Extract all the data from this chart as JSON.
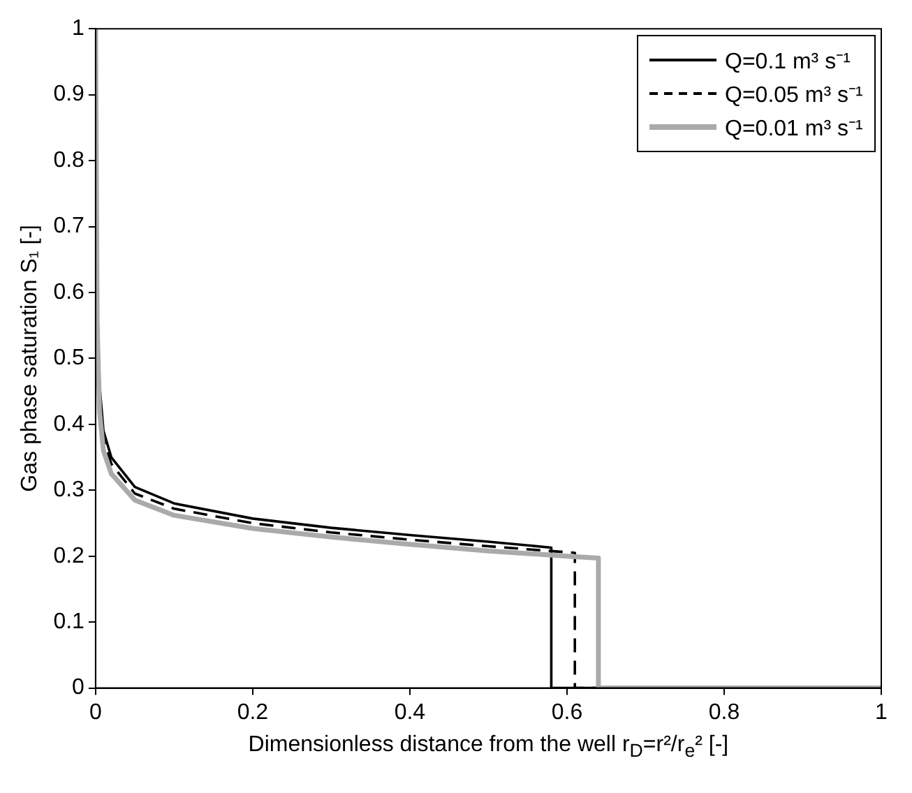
{
  "chart_data": {
    "type": "line",
    "xlabel": "Dimensionless distance from the well r$_{D}$=r²/r$_{e}$² [-]",
    "ylabel": "Gas phase saturation S₁ [-]",
    "xlim": [
      0,
      1
    ],
    "ylim": [
      0,
      1
    ],
    "xticks": [
      0,
      0.2,
      0.4,
      0.6,
      0.8,
      1
    ],
    "yticks": [
      0,
      0.1,
      0.2,
      0.3,
      0.4,
      0.5,
      0.6,
      0.7,
      0.8,
      0.9,
      1
    ],
    "grid": false,
    "legend": "top right",
    "marker": "none",
    "series": [
      {
        "name": "Q=0.1 m³ s⁻¹",
        "color": "#000000",
        "line_style": "solid",
        "x": [
          0,
          0.002,
          0.005,
          0.01,
          0.02,
          0.05,
          0.1,
          0.2,
          0.3,
          0.4,
          0.5,
          0.58,
          0.58,
          1
        ],
        "values": [
          1,
          0.6,
          0.46,
          0.39,
          0.35,
          0.305,
          0.28,
          0.257,
          0.243,
          0.232,
          0.222,
          0.213,
          0,
          0
        ]
      },
      {
        "name": "Q=0.05 m³ s⁻¹",
        "color": "#000000",
        "line_style": "dashed",
        "x": [
          0,
          0.002,
          0.005,
          0.01,
          0.02,
          0.05,
          0.1,
          0.2,
          0.3,
          0.4,
          0.5,
          0.61,
          0.61,
          1
        ],
        "values": [
          1,
          0.58,
          0.44,
          0.38,
          0.34,
          0.295,
          0.272,
          0.25,
          0.236,
          0.225,
          0.215,
          0.205,
          0,
          0
        ]
      },
      {
        "name": "Q=0.01 m³ s⁻¹",
        "color": "#aaaaaa",
        "line_style": "solid",
        "x": [
          0,
          0.002,
          0.005,
          0.01,
          0.02,
          0.05,
          0.1,
          0.2,
          0.3,
          0.4,
          0.5,
          0.6,
          0.64,
          0.64,
          1
        ],
        "values": [
          1,
          0.55,
          0.42,
          0.36,
          0.325,
          0.285,
          0.262,
          0.242,
          0.229,
          0.218,
          0.208,
          0.2,
          0.197,
          0,
          0
        ]
      }
    ]
  }
}
